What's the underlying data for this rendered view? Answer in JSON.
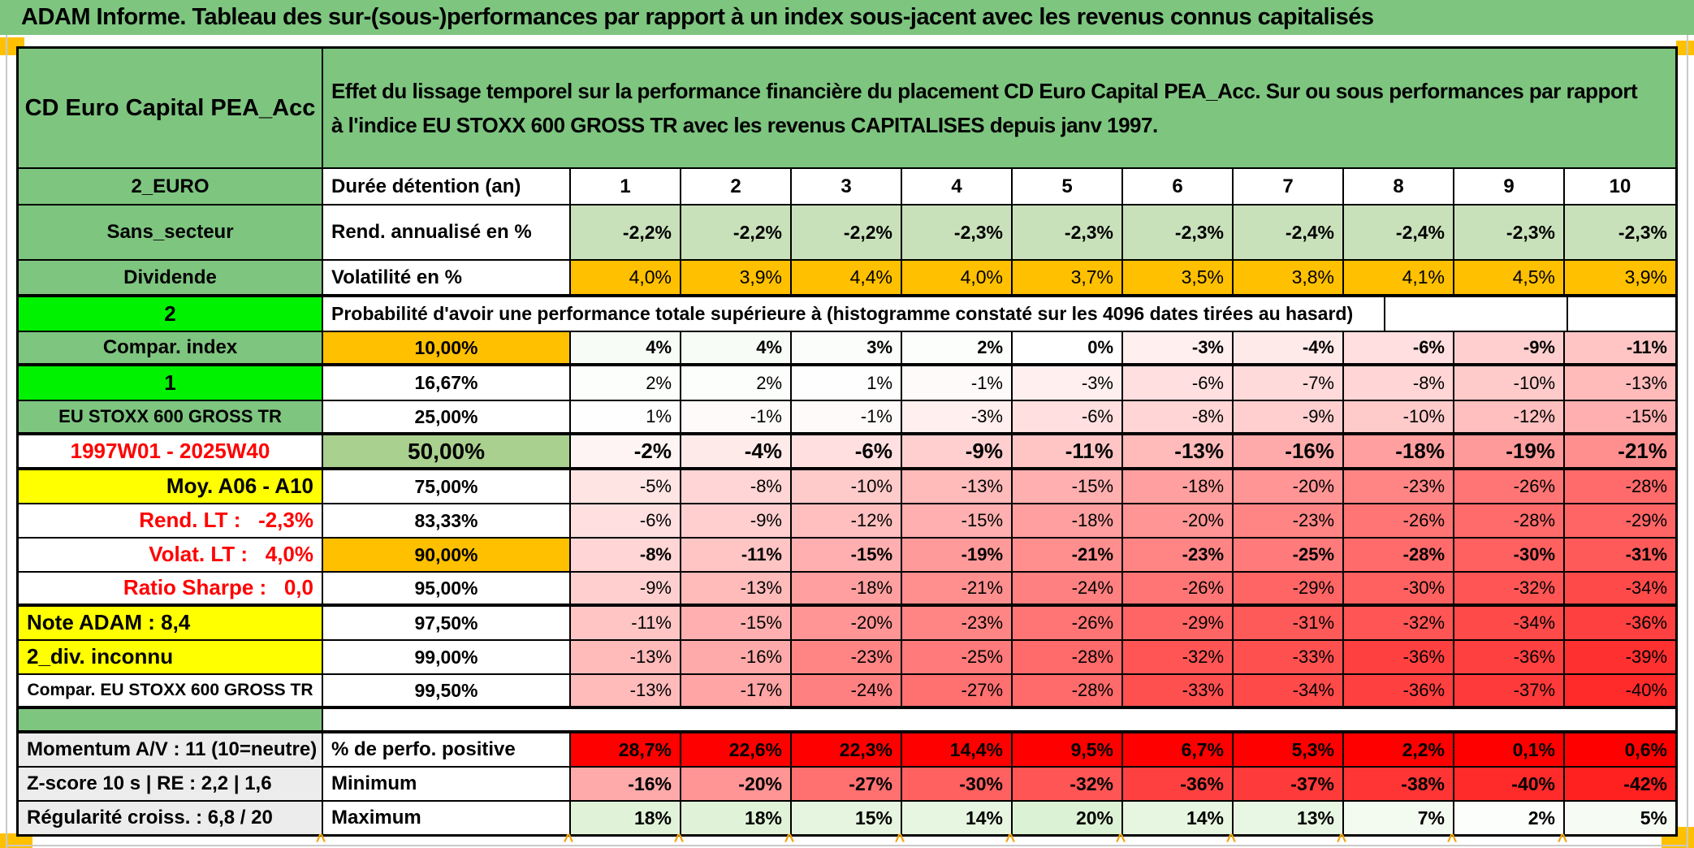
{
  "title": "ADAM Informe. Tableau des sur-(sous-)performances par rapport à un index sous-jacent avec les revenus connus capitalisés",
  "colors": {
    "table_green": "#7EC580",
    "bright_green": "#00F200",
    "percentile_green": "#A9D08E",
    "return_row_green": "#C9E1BA",
    "orange": "#FFC000",
    "yellow": "#FFFF00",
    "red": "#FF0000",
    "gray": "#ECECEC",
    "red_text": "#FF0000",
    "marker_orange": "#FFC000",
    "comment_red": "#E00000"
  },
  "header": {
    "product": "CD Euro Capital PEA_Acc",
    "description": "Effet du lissage temporel sur la performance financière du placement CD Euro Capital PEA_Acc. Sur ou sous performances par rapport à l'indice EU STOXX 600 GROSS TR avec les revenus CAPITALISES depuis janv 1997."
  },
  "left_column": {
    "cells": [
      {
        "text": "2_EURO",
        "bg": "table_green"
      },
      {
        "text": "Sans_secteur",
        "bg": "table_green"
      },
      {
        "text": "Dividende",
        "bg": "table_green"
      },
      {
        "text": "2",
        "bg": "bright_green",
        "corner": true,
        "size": 26
      },
      {
        "text": "Compar. index",
        "bg": "table_green"
      },
      {
        "text": "1",
        "bg": "bright_green",
        "corner": true,
        "size": 26
      },
      {
        "text": "EU STOXX 600 GROSS TR",
        "bg": "table_green",
        "size": 22
      },
      {
        "text": "1997W01 - 2025W40",
        "color": "red",
        "size": 26
      },
      {
        "text": "Moy. A06 - A10",
        "bg": "yellow",
        "align": "right",
        "size": 26
      },
      {
        "text": "Rend. LT :   -2,3%",
        "color": "red",
        "align": "right",
        "size": 26
      },
      {
        "text": "Volat. LT :   4,0%",
        "color": "red",
        "align": "right",
        "size": 26
      },
      {
        "text": "Ratio Sharpe :   0,0",
        "color": "red",
        "align": "right",
        "size": 26
      },
      {
        "text": "Note ADAM : 8,4",
        "bg": "yellow",
        "align": "left",
        "size": 26
      },
      {
        "text": "2_div. inconnu",
        "bg": "yellow",
        "align": "left",
        "size": 26
      },
      {
        "text": "Compar. EU STOXX 600 GROSS TR",
        "size": 21
      },
      {
        "text": "",
        "bg": "table_green",
        "spacer": true
      },
      {
        "text": "Momentum A/V : 11 (10=neutre)",
        "bg": "gray",
        "align": "left",
        "size": 24
      },
      {
        "text": "Z-score 10 s | RE : 2,2 | 1,6",
        "bg": "gray",
        "align": "left",
        "size": 24
      },
      {
        "text": "Régularité croiss. : 6,8 / 20",
        "bg": "gray",
        "align": "left",
        "size": 24
      }
    ]
  },
  "columns": [
    "1",
    "2",
    "3",
    "4",
    "5",
    "6",
    "7",
    "8",
    "9",
    "10"
  ],
  "duration": {
    "label": "Durée détention (an)"
  },
  "annualized_return": {
    "label": "Rend. annualisé en %",
    "values": [
      "-2,2%",
      "-2,2%",
      "-2,2%",
      "-2,3%",
      "-2,3%",
      "-2,3%",
      "-2,4%",
      "-2,4%",
      "-2,3%",
      "-2,3%"
    ]
  },
  "volatility": {
    "label": "Volatilité en %",
    "values": [
      "4,0%",
      "3,9%",
      "4,4%",
      "4,0%",
      "3,7%",
      "3,5%",
      "3,8%",
      "4,1%",
      "4,5%",
      "3,9%"
    ]
  },
  "probability": {
    "header": "Probabilité d'avoir une performance totale supérieure à (histogramme constaté sur les 4096 dates tirées au hasard)"
  },
  "percentile_rows": [
    {
      "label": "10,00%",
      "label_bg": "orange",
      "bold": true,
      "values": [
        4,
        4,
        3,
        2,
        0,
        -3,
        -4,
        -6,
        -9,
        -11
      ]
    },
    {
      "label": "16,67%",
      "values": [
        2,
        2,
        1,
        -1,
        -3,
        -6,
        -7,
        -8,
        -10,
        -13
      ]
    },
    {
      "label": "25,00%",
      "values": [
        1,
        -1,
        -1,
        -3,
        -6,
        -8,
        -9,
        -10,
        -12,
        -15
      ]
    },
    {
      "label": "50,00%",
      "label_bg": "percentile_green",
      "bold": true,
      "big": true,
      "values": [
        -2,
        -4,
        -6,
        -9,
        -11,
        -13,
        -16,
        -18,
        -19,
        -21
      ]
    },
    {
      "label": "75,00%",
      "values": [
        -5,
        -8,
        -10,
        -13,
        -15,
        -18,
        -20,
        -23,
        -26,
        -28
      ]
    },
    {
      "label": "83,33%",
      "values": [
        -6,
        -9,
        -12,
        -15,
        -18,
        -20,
        -23,
        -26,
        -28,
        -29
      ]
    },
    {
      "label": "90,00%",
      "label_bg": "orange",
      "bold": true,
      "values": [
        -8,
        -11,
        -15,
        -19,
        -21,
        -23,
        -25,
        -28,
        -30,
        -31
      ]
    },
    {
      "label": "95,00%",
      "values": [
        -9,
        -13,
        -18,
        -21,
        -24,
        -26,
        -29,
        -30,
        -32,
        -34
      ]
    },
    {
      "label": "97,50%",
      "values": [
        -11,
        -15,
        -20,
        -23,
        -26,
        -29,
        -31,
        -32,
        -34,
        -36
      ]
    },
    {
      "label": "99,00%",
      "values": [
        -13,
        -16,
        -23,
        -25,
        -28,
        -32,
        -33,
        -36,
        -36,
        -39
      ]
    },
    {
      "label": "99,50%",
      "values": [
        -13,
        -17,
        -24,
        -27,
        -28,
        -33,
        -34,
        -36,
        -37,
        -40
      ]
    }
  ],
  "summary_rows": [
    {
      "label": "% de perfo. positive",
      "values": [
        "28,7%",
        "22,6%",
        "22,3%",
        "14,4%",
        "9,5%",
        "6,7%",
        "5,3%",
        "2,2%",
        "0,1%",
        "0,6%"
      ],
      "style": "red"
    },
    {
      "label": "Minimum",
      "values": [
        -16,
        -20,
        -27,
        -30,
        -32,
        -36,
        -37,
        -38,
        -40,
        -42
      ],
      "style": "scale"
    },
    {
      "label": "Maximum",
      "values": [
        18,
        18,
        15,
        14,
        20,
        14,
        13,
        7,
        2,
        5
      ],
      "style": "scale"
    }
  ]
}
